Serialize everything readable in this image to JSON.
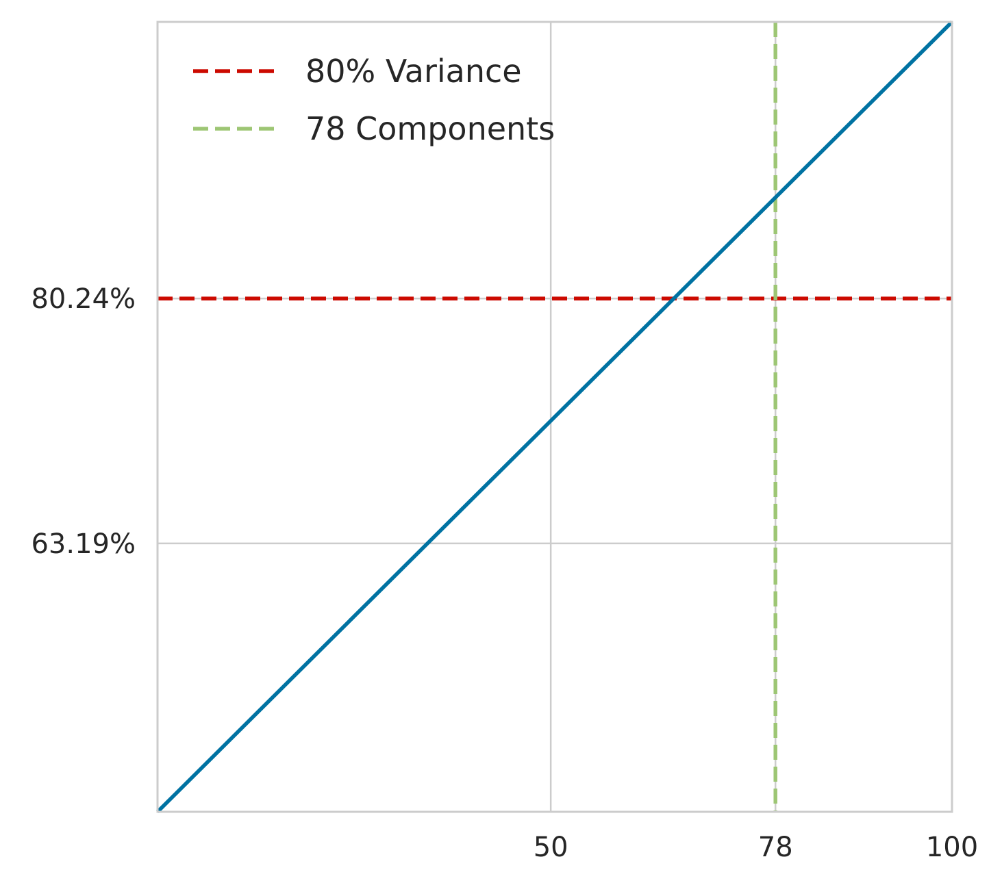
{
  "chart_data": {
    "type": "line",
    "title": "",
    "xlabel": "",
    "ylabel": "",
    "xlim": [
      1,
      100
    ],
    "ylim": [
      44.5,
      99.5
    ],
    "x_ticks": [
      50,
      78,
      100
    ],
    "x_tick_labels": [
      "50",
      "78",
      "100"
    ],
    "y_ticks": [
      63.19,
      80.24
    ],
    "y_tick_labels": [
      "63.19%",
      "80.24%"
    ],
    "grid": true,
    "legend_position": "upper-left",
    "series": [
      {
        "x": [
          1,
          100
        ],
        "y": [
          44.5,
          99.5
        ],
        "color": "#0072a2",
        "style": "solid"
      }
    ],
    "reference_lines": [
      {
        "orientation": "horizontal",
        "value": 80.24,
        "label": "80% Variance",
        "color": "#cc0a00",
        "style": "dashed"
      },
      {
        "orientation": "vertical",
        "value": 78,
        "label": "78 Components",
        "color": "#9dc674",
        "style": "dashed"
      }
    ],
    "colors": {
      "grid": "#cccccc",
      "frame": "#cccccc",
      "text": "#262626",
      "background": "#ffffff"
    }
  }
}
